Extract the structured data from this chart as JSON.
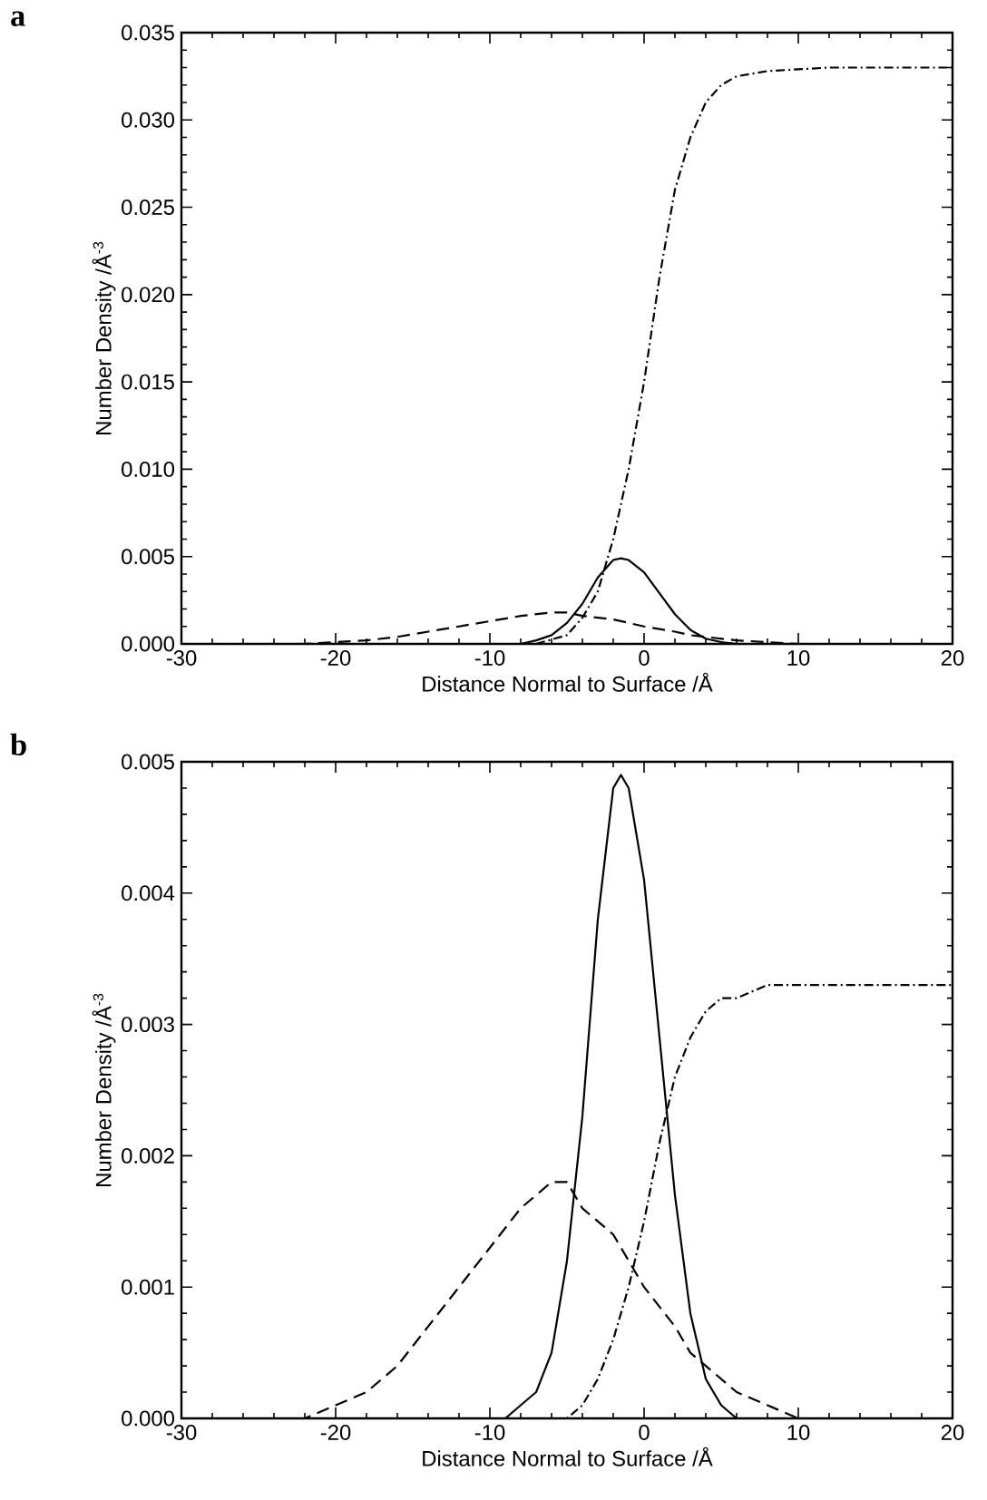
{
  "chart_data": [
    {
      "type": "line",
      "title": "a",
      "xlabel": "Distance Normal to Surface /Å",
      "ylabel": "Number Density /Å$^{-3}$",
      "xlim": [
        -30,
        20
      ],
      "ylim": [
        0,
        0.035
      ],
      "xticks": [
        -30,
        -20,
        -10,
        0,
        10,
        20
      ],
      "yticks": [
        {
          "value": 0,
          "label": "0.000"
        },
        {
          "value": 0.005,
          "label": "0.005"
        },
        {
          "value": 0.01,
          "label": "0.010"
        },
        {
          "value": 0.015,
          "label": "0.015"
        },
        {
          "value": 0.02,
          "label": "0.020"
        },
        {
          "value": 0.025,
          "label": "0.025"
        },
        {
          "value": 0.03,
          "label": "0.030"
        },
        {
          "value": 0.035,
          "label": "0.035"
        }
      ],
      "series": [
        {
          "color": "#000000",
          "line_style": "solid",
          "x": [
            -10,
            -9,
            -8,
            -7,
            -6,
            -5,
            -4,
            -3,
            -2,
            -1.5,
            -1,
            0,
            1,
            2,
            3,
            4,
            5,
            6,
            7
          ],
          "values": [
            0,
            0,
            0,
            0.0002,
            0.0005,
            0.0012,
            0.0023,
            0.0038,
            0.0048,
            0.0049,
            0.0048,
            0.0041,
            0.0029,
            0.0017,
            0.0008,
            0.0003,
            0.0001,
            0,
            0
          ]
        },
        {
          "color": "#000000",
          "line_style": "dashed",
          "x": [
            -25,
            -22,
            -20,
            -18,
            -16,
            -14,
            -12,
            -10,
            -8,
            -6,
            -5,
            -4,
            -2,
            0,
            2,
            3,
            4,
            6,
            8,
            10,
            12
          ],
          "values": [
            0,
            0,
            0.0001,
            0.0002,
            0.0004,
            0.0007,
            0.001,
            0.0013,
            0.0016,
            0.0018,
            0.0018,
            0.0016,
            0.0014,
            0.001,
            0.0007,
            0.0005,
            0.0004,
            0.0002,
            0.0001,
            0,
            0
          ]
        },
        {
          "color": "#000000",
          "line_style": "dashdot",
          "x": [
            -7,
            -5,
            -4,
            -3,
            -2,
            -1,
            0,
            1,
            2,
            3,
            4,
            5,
            6,
            8,
            12,
            20
          ],
          "values": [
            0,
            0.0005,
            0.0015,
            0.003,
            0.006,
            0.01,
            0.015,
            0.021,
            0.026,
            0.029,
            0.031,
            0.032,
            0.0325,
            0.0328,
            0.033,
            0.033
          ]
        }
      ]
    },
    {
      "type": "line",
      "title": "b",
      "xlabel": "Distance Normal to Surface /Å",
      "ylabel": "Number Density /Å$^{-3}$",
      "xlim": [
        -30,
        20
      ],
      "ylim": [
        0,
        0.005
      ],
      "xticks": [
        -30,
        -20,
        -10,
        0,
        10,
        20
      ],
      "yticks": [
        {
          "value": 0,
          "label": "0.000"
        },
        {
          "value": 0.001,
          "label": "0.001"
        },
        {
          "value": 0.002,
          "label": "0.002"
        },
        {
          "value": 0.003,
          "label": "0.003"
        },
        {
          "value": 0.004,
          "label": "0.004"
        },
        {
          "value": 0.005,
          "label": "0.005"
        }
      ],
      "series": [
        {
          "color": "#000000",
          "line_style": "solid",
          "x": [
            -10,
            -9,
            -8,
            -7,
            -6,
            -5,
            -4,
            -3,
            -2,
            -1.5,
            -1,
            0,
            1,
            2,
            3,
            4,
            5,
            6,
            7
          ],
          "values": [
            0,
            0,
            0.0001,
            0.0002,
            0.0005,
            0.0012,
            0.0023,
            0.0038,
            0.0048,
            0.0049,
            0.0048,
            0.0041,
            0.0029,
            0.0017,
            0.0008,
            0.0003,
            0.0001,
            0,
            0
          ]
        },
        {
          "color": "#000000",
          "line_style": "dashed",
          "x": [
            -25,
            -22,
            -20,
            -18,
            -16,
            -14,
            -12,
            -10,
            -8,
            -6,
            -5,
            -4,
            -2,
            0,
            2,
            3,
            4,
            6,
            8,
            10,
            12
          ],
          "values": [
            0,
            0,
            0.0001,
            0.0002,
            0.0004,
            0.0007,
            0.001,
            0.0013,
            0.0016,
            0.0018,
            0.0018,
            0.0016,
            0.0014,
            0.001,
            0.0007,
            0.0005,
            0.0004,
            0.0002,
            0.0001,
            0,
            0
          ]
        },
        {
          "color": "#000000",
          "line_style": "dashdot",
          "x": [
            -7,
            -5,
            -4,
            -3,
            -2,
            -1,
            0,
            1,
            2,
            3,
            4,
            5,
            6,
            8,
            12,
            20
          ],
          "values": [
            0,
            0,
            0.0001,
            0.0003,
            0.0006,
            0.001,
            0.0015,
            0.0021,
            0.0026,
            0.0029,
            0.0031,
            0.0032,
            0.0032,
            0.0033,
            0.0033,
            0.0033
          ]
        }
      ]
    }
  ]
}
